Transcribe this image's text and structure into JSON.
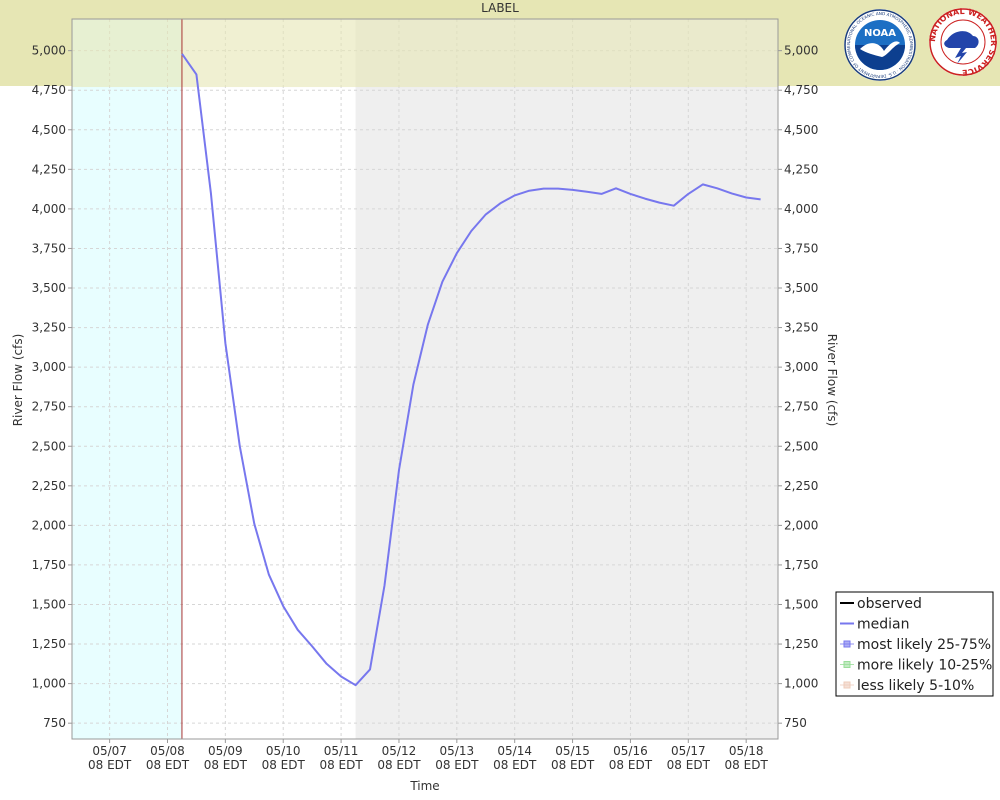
{
  "chart_data": {
    "type": "line",
    "title": "LABEL",
    "xlabel": "Time",
    "ylabel": "River Flow (cfs)",
    "ylabel_right": "River Flow (cfs)",
    "x_unit": "days",
    "xlim": [
      -1.65,
      10.55
    ],
    "ylim": [
      650,
      5200
    ],
    "y_ticks": [
      750,
      1000,
      1250,
      1500,
      1750,
      2000,
      2250,
      2500,
      2750,
      3000,
      3250,
      3500,
      3750,
      4000,
      4250,
      4500,
      4750,
      5000
    ],
    "y_tick_labels": [
      "750",
      "1,000",
      "1,250",
      "1,500",
      "1,750",
      "2,000",
      "2,250",
      "2,500",
      "2,750",
      "3,000",
      "3,250",
      "3,500",
      "3,750",
      "4,000",
      "4,250",
      "4,500",
      "4,750",
      "5,000"
    ],
    "x_ticks": [
      -1,
      0,
      1,
      2,
      3,
      4,
      5,
      6,
      7,
      8,
      9,
      10
    ],
    "x_tick_labels": [
      [
        "05/07",
        "08 EDT"
      ],
      [
        "05/08",
        "08 EDT"
      ],
      [
        "05/09",
        "08 EDT"
      ],
      [
        "05/10",
        "08 EDT"
      ],
      [
        "05/11",
        "08 EDT"
      ],
      [
        "05/12",
        "08 EDT"
      ],
      [
        "05/13",
        "08 EDT"
      ],
      [
        "05/14",
        "08 EDT"
      ],
      [
        "05/15",
        "08 EDT"
      ],
      [
        "05/16",
        "08 EDT"
      ],
      [
        "05/17",
        "08 EDT"
      ],
      [
        "05/18",
        "08 EDT"
      ]
    ],
    "grid": true,
    "regions": [
      {
        "kind": "observed-period",
        "x0": -1.65,
        "x1": 0.25,
        "color": "#e8feff"
      },
      {
        "kind": "extended-period",
        "x0": 3.25,
        "x1": 10.55,
        "color": "#efefef"
      }
    ],
    "top_band": {
      "y0": 4770,
      "y1": 5200,
      "color": "#e6e6b4"
    },
    "current_time_x": 0.25,
    "current_time_color": "#aa3333",
    "series": [
      {
        "name": "median",
        "color": "#7777ee",
        "x": [
          0.25,
          0.5,
          0.75,
          1.0,
          1.25,
          1.5,
          1.75,
          2.0,
          2.25,
          2.5,
          2.75,
          3.0,
          3.25,
          3.5,
          3.75,
          4.0,
          4.25,
          4.5,
          4.75,
          5.0,
          5.25,
          5.5,
          5.75,
          6.0,
          6.25,
          6.5,
          6.75,
          7.0,
          7.25,
          7.5,
          7.75,
          8.0,
          8.25,
          8.5,
          8.75,
          9.0,
          9.25,
          9.5,
          9.75,
          10.0,
          10.25
        ],
        "y": [
          4980,
          4850,
          4100,
          3150,
          2500,
          2010,
          1690,
          1490,
          1340,
          1235,
          1125,
          1045,
          990,
          1090,
          1620,
          2350,
          2890,
          3270,
          3540,
          3720,
          3860,
          3965,
          4035,
          4085,
          4115,
          4128,
          4128,
          4120,
          4108,
          4095,
          4130,
          4095,
          4065,
          4040,
          4020,
          4095,
          4155,
          4130,
          4098,
          4072,
          4060
        ]
      }
    ],
    "legend": {
      "placement": "bottom-right",
      "entries": [
        {
          "label": "observed",
          "style": "line",
          "color": "#000000"
        },
        {
          "label": "median",
          "style": "line",
          "color": "#7777ee"
        },
        {
          "label": "most likely 25-75%",
          "style": "box",
          "color": "#7777ee"
        },
        {
          "label": "more likely 10-25%",
          "style": "box",
          "color": "#99dd99"
        },
        {
          "label": "less likely 5-10%",
          "style": "box",
          "color": "#eeccbb"
        }
      ]
    }
  },
  "logos": [
    {
      "name": "noaa",
      "text": "NOAA",
      "ring_text": "NATIONAL OCEANIC AND ATMOSPHERIC ADMINISTRATION · U.S. DEPARTMENT OF COMMERCE"
    },
    {
      "name": "nws",
      "ring_text": "NATIONAL WEATHER SERVICE"
    }
  ]
}
